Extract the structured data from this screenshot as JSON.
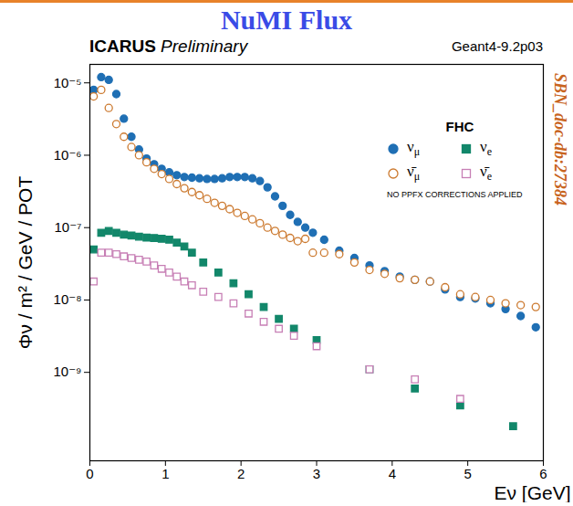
{
  "chart_data": {
    "type": "scatter",
    "title": "NuMI Flux",
    "subtitle": "ICARUS Preliminary",
    "annotations": [
      "Geant4-9.2p03",
      "NO PPFX CORRECTIONS APPLIED",
      "SBN_doc-db:27384"
    ],
    "legend_title": "FHC",
    "x_label": "Eν [GeV]",
    "y_label": "Φν / m² / GeV / POT",
    "xlim": [
      0,
      6
    ],
    "xticks": [
      0,
      1,
      2,
      3,
      4,
      5,
      6
    ],
    "ylim": [
      6e-11,
      1.8e-05
    ],
    "yticks": [
      {
        "value": 1e-09,
        "label": "10⁻⁹"
      },
      {
        "value": 1e-08,
        "label": "10⁻⁸"
      },
      {
        "value": 1e-07,
        "label": "10⁻⁷"
      },
      {
        "value": 1e-06,
        "label": "10⁻⁶"
      },
      {
        "value": 1e-05,
        "label": "10⁻⁵"
      }
    ],
    "log": "y",
    "grid": false,
    "legend": "top-right",
    "series": [
      {
        "name": "νμ",
        "color": "#1f6fb4",
        "marker": "circle",
        "x": [
          0.05,
          0.15,
          0.25,
          0.35,
          0.45,
          0.55,
          0.65,
          0.75,
          0.85,
          0.95,
          1.05,
          1.15,
          1.25,
          1.35,
          1.45,
          1.55,
          1.65,
          1.75,
          1.85,
          1.95,
          2.05,
          2.15,
          2.25,
          2.35,
          2.45,
          2.55,
          2.65,
          2.75,
          2.85,
          2.95,
          3.1,
          3.3,
          3.5,
          3.7,
          3.9,
          4.1,
          4.3,
          4.5,
          4.7,
          4.9,
          5.1,
          5.3,
          5.5,
          5.7,
          5.9
        ],
        "values": [
          8e-06,
          1.2e-05,
          1.1e-05,
          7e-06,
          3.2e-06,
          1.8e-06,
          1.2e-06,
          9e-07,
          7.5e-07,
          6.5e-07,
          5.8e-07,
          5.3e-07,
          5e-07,
          4.9e-07,
          4.8e-07,
          4.7e-07,
          4.7e-07,
          4.8e-07,
          5e-07,
          5e-07,
          5e-07,
          4.8e-07,
          4.4e-07,
          3.6e-07,
          2.7e-07,
          2e-07,
          1.5e-07,
          1.2e-07,
          1e-07,
          8.5e-08,
          6.8e-08,
          4.8e-08,
          3.8e-08,
          3e-08,
          2.5e-08,
          2.1e-08,
          1.9e-08,
          1.8e-08,
          1.4e-08,
          1.1e-08,
          1.05e-08,
          9e-09,
          7.5e-09,
          6e-09,
          4.2e-09
        ]
      },
      {
        "name": "ν̄μ",
        "color": "#cc7a30",
        "marker": "circle-open",
        "x": [
          0.05,
          0.15,
          0.25,
          0.35,
          0.45,
          0.55,
          0.65,
          0.75,
          0.85,
          0.95,
          1.05,
          1.15,
          1.25,
          1.35,
          1.45,
          1.55,
          1.65,
          1.75,
          1.85,
          1.95,
          2.05,
          2.15,
          2.25,
          2.35,
          2.45,
          2.55,
          2.65,
          2.75,
          2.85,
          2.95,
          3.1,
          3.3,
          3.5,
          3.7,
          3.9,
          4.1,
          4.3,
          4.5,
          4.7,
          4.9,
          5.1,
          5.3,
          5.5,
          5.7,
          5.9
        ],
        "values": [
          6.5e-06,
          8e-06,
          4.5e-06,
          2.7e-06,
          1.8e-06,
          1.3e-06,
          1e-06,
          8e-07,
          6.5e-07,
          5.5e-07,
          4.7e-07,
          4e-07,
          3.5e-07,
          3.1e-07,
          2.8e-07,
          2.5e-07,
          2.2e-07,
          2e-07,
          1.8e-07,
          1.6e-07,
          1.45e-07,
          1.3e-07,
          1.15e-07,
          1e-07,
          9e-08,
          8e-08,
          7.2e-08,
          6.5e-08,
          7e-08,
          4.5e-08,
          4.5e-08,
          4.3e-08,
          3.3e-08,
          2.6e-08,
          2.3e-08,
          2e-08,
          1.9e-08,
          1.8e-08,
          1.5e-08,
          1.2e-08,
          1.1e-08,
          1e-08,
          9e-09,
          8.5e-09,
          8e-09
        ]
      },
      {
        "name": "νe",
        "color": "#12876a",
        "marker": "square",
        "x": [
          0.05,
          0.15,
          0.25,
          0.35,
          0.45,
          0.55,
          0.65,
          0.75,
          0.85,
          0.95,
          1.05,
          1.15,
          1.25,
          1.35,
          1.5,
          1.7,
          1.9,
          2.1,
          2.3,
          2.5,
          2.7,
          3.0,
          3.7,
          4.3,
          4.9,
          5.6
        ],
        "values": [
          5e-08,
          8.5e-08,
          9e-08,
          8.5e-08,
          8e-08,
          7.8e-08,
          7.5e-08,
          7.3e-08,
          7.2e-08,
          7e-08,
          6.8e-08,
          6.2e-08,
          5.5e-08,
          4.5e-08,
          3.3e-08,
          2.4e-08,
          1.7e-08,
          1.2e-08,
          8e-09,
          5.5e-09,
          4e-09,
          2.8e-09,
          1.1e-09,
          6e-10,
          3.5e-10,
          1.8e-10
        ]
      },
      {
        "name": "ν̄e",
        "color": "#c77fb5",
        "marker": "square-open",
        "x": [
          0.05,
          0.15,
          0.25,
          0.35,
          0.45,
          0.55,
          0.65,
          0.75,
          0.85,
          0.95,
          1.05,
          1.15,
          1.25,
          1.35,
          1.5,
          1.7,
          1.9,
          2.1,
          2.3,
          2.5,
          2.7,
          3.0,
          3.7,
          4.3,
          4.9
        ],
        "values": [
          1.8e-08,
          4.5e-08,
          4.5e-08,
          4.3e-08,
          4e-08,
          3.8e-08,
          3.6e-08,
          3.4e-08,
          3e-08,
          2.7e-08,
          2.4e-08,
          2.1e-08,
          1.8e-08,
          1.6e-08,
          1.3e-08,
          1.1e-08,
          9e-09,
          6.5e-09,
          5e-09,
          4e-09,
          3.2e-09,
          2.3e-09,
          1.1e-09,
          8e-10,
          4.3e-10
        ]
      }
    ]
  }
}
